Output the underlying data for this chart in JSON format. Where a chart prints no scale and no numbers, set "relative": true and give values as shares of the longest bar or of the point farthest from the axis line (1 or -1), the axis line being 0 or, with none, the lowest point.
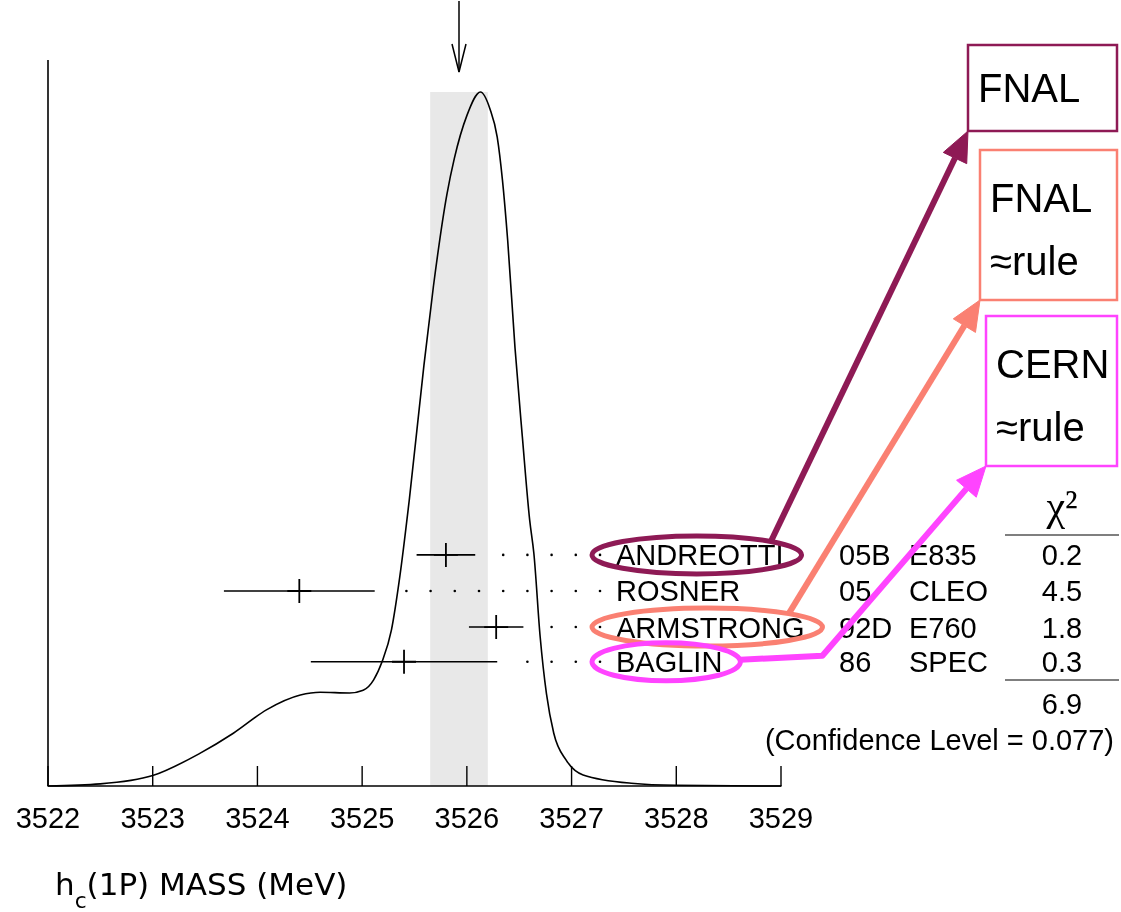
{
  "chart_data": {
    "type": "line",
    "relative": true,
    "xlabel": "h$_{c}$(1P) MASS (MeV)",
    "xlim": [
      3522,
      3529
    ],
    "xticks": [
      3522,
      3523,
      3524,
      3525,
      3526,
      3527,
      3528,
      3529
    ],
    "series": [
      {
        "color": "#000000",
        "x": [
          3522,
          3522.5,
          3523,
          3523.45,
          3523.77,
          3524.09,
          3524.41,
          3524.6,
          3524.88,
          3525.01,
          3525.11,
          3525.19,
          3525.28,
          3525.36,
          3525.45,
          3525.59,
          3525.68,
          3525.81,
          3525.88,
          3526,
          3526.13,
          3526.22,
          3526.29,
          3526.34,
          3526.39,
          3526.46,
          3526.53,
          3526.6,
          3526.64,
          3526.7,
          3526.76,
          3526.83,
          3526.95,
          3527.11,
          3527.57,
          3528,
          3529
        ],
        "values": [
          0,
          0.003,
          0.015,
          0.047,
          0.076,
          0.11,
          0.131,
          0.135,
          0.134,
          0.138,
          0.153,
          0.179,
          0.225,
          0.302,
          0.412,
          0.606,
          0.719,
          0.853,
          0.904,
          0.966,
          1,
          0.976,
          0.935,
          0.873,
          0.786,
          0.631,
          0.503,
          0.383,
          0.335,
          0.215,
          0.133,
          0.076,
          0.037,
          0.016,
          0.004,
          0.001,
          0
        ]
      },
      {
        "type": "scatter",
        "color": "#000000",
        "marker": "cross",
        "x": [
          3525.8,
          3524.4,
          3526.28,
          3525.4
        ],
        "values": [
          0.333,
          0.281,
          0.229,
          0.179
        ],
        "xerrors": [
          0.28,
          0.72,
          0.26,
          0.89
        ]
      }
    ],
    "bands": [
      {
        "axis": "x",
        "from": 3525.65,
        "to": 3526.2,
        "color": "#e8e8e8"
      }
    ],
    "annotations": [
      "ANDREOTTI",
      "05B",
      "E835",
      "0.2",
      "ROSNER",
      "05",
      "CLEO",
      "4.5",
      "ARMSTRONG",
      "92D",
      "E760",
      "1.8",
      "BAGLIN",
      "86",
      "SPEC",
      "0.3",
      "χ²",
      "6.9",
      "(Confidence Level = 0.077)",
      "FNAL",
      "FNAL\n≈rule",
      "CERN\n≈rule"
    ]
  }
}
